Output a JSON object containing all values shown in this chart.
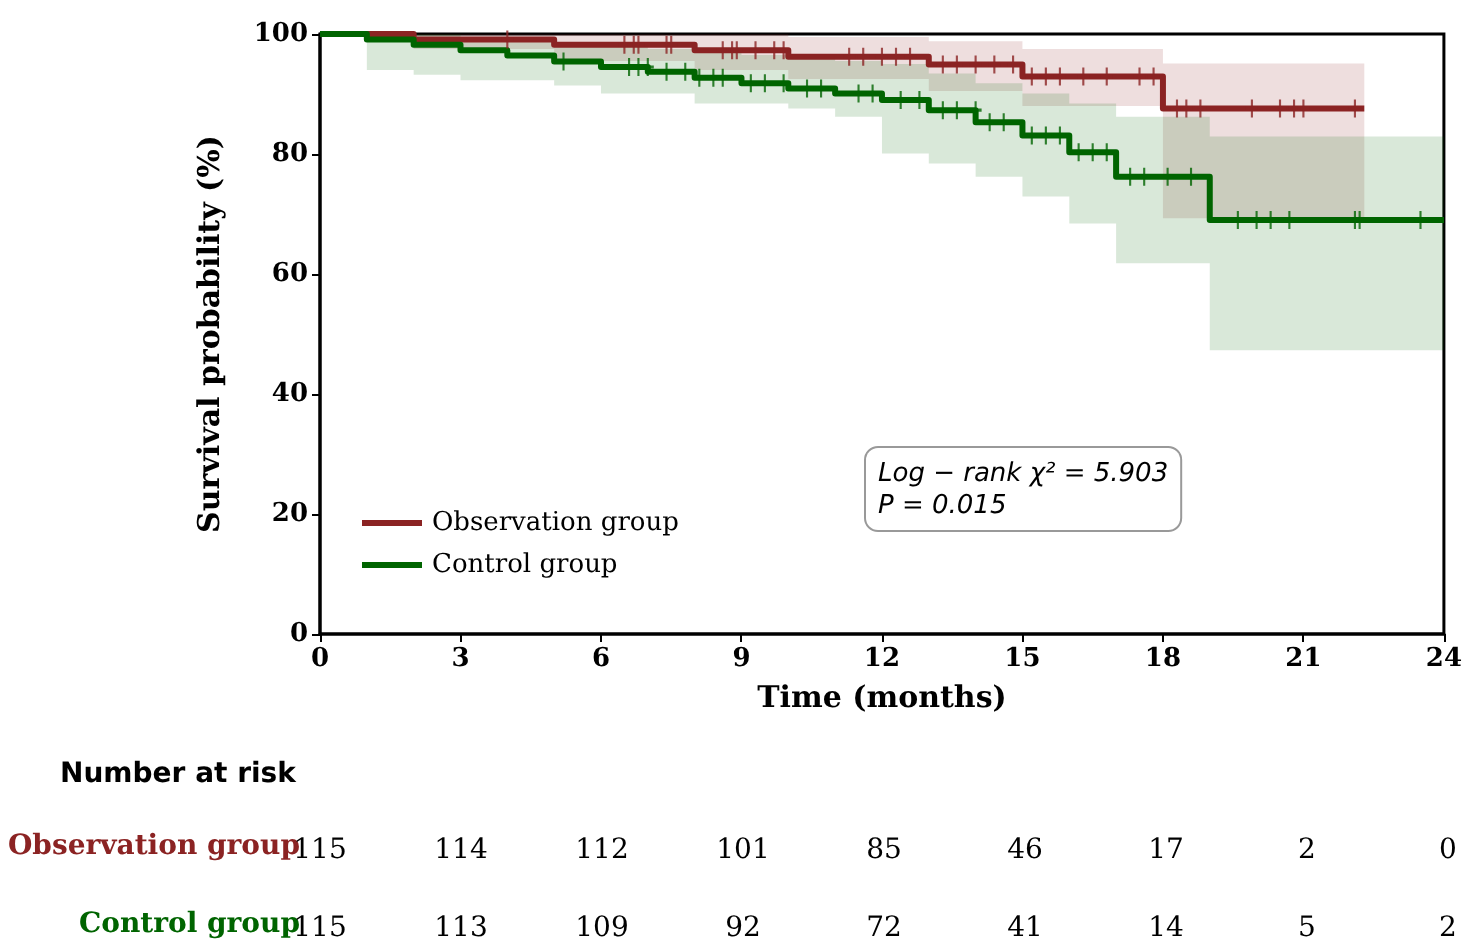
{
  "chart_data": {
    "type": "step",
    "xlabel": "Time (months)",
    "ylabel": "Survival probability (%)",
    "xlim": [
      0,
      24
    ],
    "xticks": [
      0,
      3,
      6,
      9,
      12,
      15,
      18,
      21,
      24
    ],
    "ylim": [
      0,
      100
    ],
    "yticks": [
      0,
      20,
      40,
      60,
      80,
      100
    ],
    "grid": false,
    "legend": "bottom left",
    "line_style": "solid",
    "series": [
      {
        "name": "Observation group",
        "color": "#8b2323",
        "x": [
          0,
          2,
          5,
          8,
          10,
          13,
          15,
          18,
          22.3
        ],
        "values": [
          100,
          99.1,
          98.2,
          97.3,
          96.2,
          94.9,
          92.9,
          87.6,
          87.6
        ],
        "lower": [
          100,
          97.5,
          95.5,
          94,
          92.5,
          90.5,
          88,
          69.3,
          69.3
        ],
        "upper": [
          100,
          100,
          100,
          100,
          99.5,
          98.8,
          97.5,
          95.1,
          95.1
        ]
      },
      {
        "name": "Control group",
        "color": "#006400",
        "x": [
          0,
          1,
          2,
          3,
          4,
          5,
          6,
          7,
          8,
          9,
          10,
          11,
          12,
          13,
          14,
          15,
          16,
          17,
          19,
          24
        ],
        "values": [
          100,
          99.1,
          98.2,
          97.3,
          96.4,
          95.4,
          94.5,
          93.7,
          92.7,
          91.8,
          90.9,
          90.1,
          89,
          87.3,
          85.3,
          83.1,
          80.3,
          76.2,
          69,
          69
        ],
        "lower": [
          100,
          94,
          93.2,
          92.3,
          92.3,
          91.4,
          90.1,
          90.1,
          88.4,
          88.4,
          87.6,
          86.2,
          80.1,
          78.4,
          76.2,
          72.9,
          68.4,
          61.8,
          47.3,
          47.3
        ],
        "upper": [
          100,
          100,
          100,
          99.5,
          99,
          98.5,
          98,
          97.5,
          97,
          96.5,
          96,
          95.5,
          95,
          93.4,
          91.8,
          90.1,
          88.4,
          86.2,
          82.9,
          82.9
        ]
      },
      {
        "color": "#8b2323",
        "type": "scatter",
        "marker": "cross",
        "x": [
          4,
          6.5,
          6.7,
          6.8,
          7.4,
          7.5,
          8.6,
          8.8,
          8.9,
          9.3,
          9.7,
          9.9,
          11.3,
          11.6,
          12,
          12.3,
          12.6,
          13.3,
          13.6,
          14,
          14.4,
          14.8,
          15.2,
          15.5,
          15.8,
          16.3,
          16.8,
          17.5,
          17.8,
          18.3,
          18.5,
          18.8,
          19.9,
          20.5,
          20.8,
          21,
          22.1
        ],
        "values": [
          99.1,
          98.2,
          98.2,
          98.2,
          98.2,
          98.2,
          97.3,
          97.3,
          97.3,
          97.3,
          97.3,
          97.3,
          96.2,
          96.2,
          96.2,
          96.2,
          96.2,
          94.9,
          94.9,
          94.9,
          94.9,
          94.9,
          92.9,
          92.9,
          92.9,
          92.9,
          92.9,
          92.9,
          92.9,
          87.6,
          87.6,
          87.6,
          87.6,
          87.6,
          87.6,
          87.6,
          87.6
        ]
      },
      {
        "color": "#006400",
        "type": "scatter",
        "marker": "cross",
        "x": [
          5.2,
          6.6,
          6.8,
          7,
          7.4,
          7.8,
          8.1,
          8.4,
          8.6,
          9.2,
          9.5,
          9.9,
          10.4,
          10.7,
          11.5,
          11.8,
          12.4,
          12.8,
          13.3,
          13.6,
          14,
          14.3,
          14.6,
          15.2,
          15.5,
          15.8,
          16.2,
          16.5,
          16.8,
          17.3,
          17.6,
          18.1,
          18.6,
          19.6,
          20,
          20.3,
          20.7,
          22.1,
          22.2,
          23.5
        ],
        "values": [
          95.4,
          94.5,
          94.5,
          94.5,
          93.7,
          93.7,
          92.7,
          92.7,
          92.7,
          91.8,
          91.8,
          91.8,
          90.9,
          90.9,
          90.1,
          90.1,
          89,
          89,
          87.3,
          87.3,
          87.3,
          85.3,
          85.3,
          83.1,
          83.1,
          83.1,
          80.3,
          80.3,
          80.3,
          76.2,
          76.2,
          76.2,
          76.2,
          69,
          69,
          69,
          69,
          69,
          69,
          69
        ]
      }
    ],
    "annotations": [
      "Log − rank χ² = 5.903",
      "P = 0.015",
      "Number at risk",
      "115",
      "114",
      "112",
      "101",
      "85",
      "46",
      "17",
      "2",
      "0",
      "115",
      "113",
      "109",
      "92",
      "72",
      "41",
      "14",
      "5",
      "2"
    ]
  }
}
